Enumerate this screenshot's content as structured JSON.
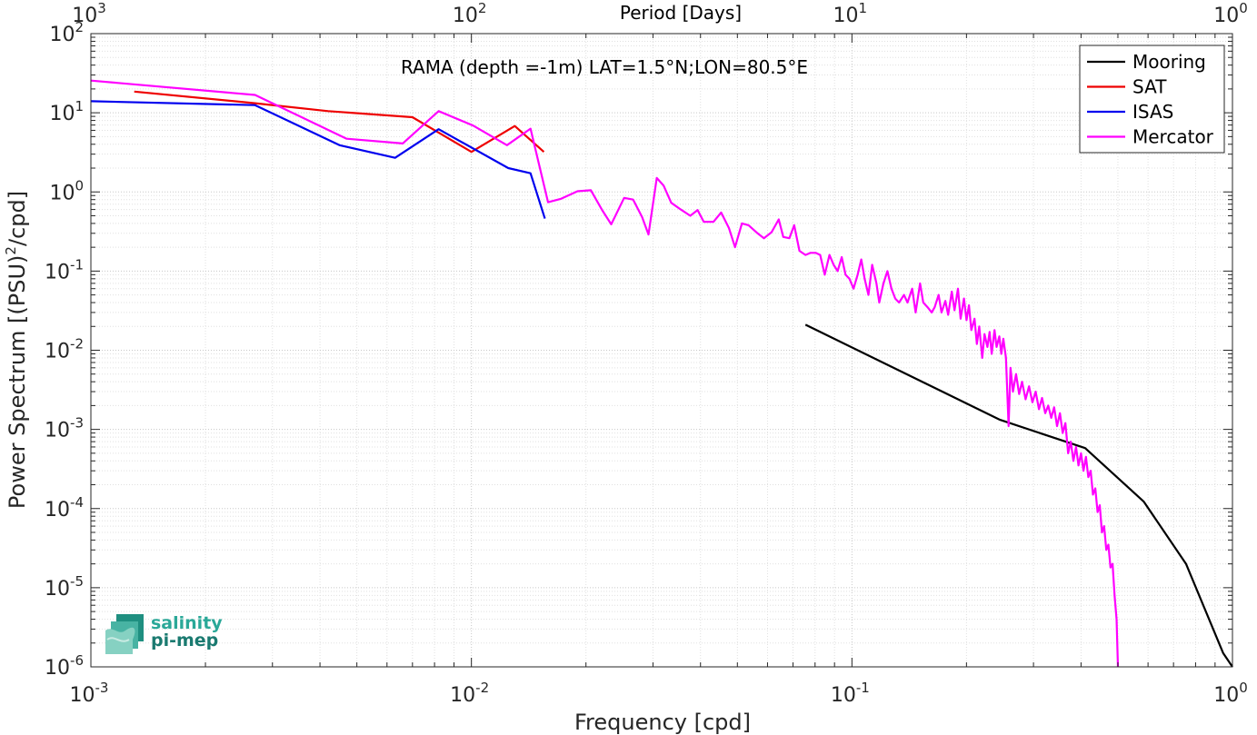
{
  "chart_data": {
    "type": "line",
    "title": "RAMA (depth =-1m) LAT=1.5°N;LON=80.5°E",
    "xlabel": "Frequency [cpd]",
    "ylabel_main": "Power Spectrum [(PSU)",
    "ylabel_sup": "2",
    "ylabel_tail": "/cpd]",
    "top_xlabel": "Period [Days]",
    "xscale": "log",
    "yscale": "log",
    "xlim": [
      0.001,
      1
    ],
    "ylim": [
      1e-06,
      100
    ],
    "grid": true,
    "legend_position": "top-right",
    "x_ticks": [
      {
        "value": 0.001,
        "base": "10",
        "exp": "-3"
      },
      {
        "value": 0.01,
        "base": "10",
        "exp": "-2"
      },
      {
        "value": 0.1,
        "base": "10",
        "exp": "-1"
      },
      {
        "value": 1,
        "base": "10",
        "exp": "0"
      }
    ],
    "top_ticks": [
      {
        "value": 0.001,
        "base": "10",
        "exp": "3"
      },
      {
        "value": 0.01,
        "base": "10",
        "exp": "2"
      },
      {
        "value": 0.1,
        "base": "10",
        "exp": "1"
      },
      {
        "value": 1,
        "base": "10",
        "exp": "0"
      }
    ],
    "y_ticks": [
      {
        "value": 100,
        "base": "10",
        "exp": "2"
      },
      {
        "value": 10,
        "base": "10",
        "exp": "1"
      },
      {
        "value": 1,
        "base": "10",
        "exp": "0"
      },
      {
        "value": 0.1,
        "base": "10",
        "exp": "-1"
      },
      {
        "value": 0.01,
        "base": "10",
        "exp": "-2"
      },
      {
        "value": 0.001,
        "base": "10",
        "exp": "-3"
      },
      {
        "value": 0.0001,
        "base": "10",
        "exp": "-4"
      },
      {
        "value": 1e-05,
        "base": "10",
        "exp": "-5"
      },
      {
        "value": 1e-06,
        "base": "10",
        "exp": "-6"
      }
    ],
    "series": [
      {
        "name": "Mooring",
        "color": "#000000",
        "points": [
          [
            0.0755,
            0.021
          ],
          [
            0.245,
            0.00132
          ],
          [
            0.41,
            0.00058
          ],
          [
            0.585,
            0.000122
          ],
          [
            0.755,
            2e-05
          ],
          [
            0.945,
            1.5e-06
          ],
          [
            1.0,
            1e-06
          ]
        ]
      },
      {
        "name": "SAT",
        "color": "#ee0000",
        "points": [
          [
            0.0013,
            18.5
          ],
          [
            0.0027,
            13.2
          ],
          [
            0.0042,
            10.5
          ],
          [
            0.007,
            8.8
          ],
          [
            0.01,
            3.2
          ],
          [
            0.013,
            6.8
          ],
          [
            0.0155,
            3.2
          ]
        ]
      },
      {
        "name": "ISAS",
        "color": "#0000ee",
        "points": [
          [
            0.001,
            14.0
          ],
          [
            0.0027,
            12.5
          ],
          [
            0.0045,
            3.9
          ],
          [
            0.0063,
            2.7
          ],
          [
            0.0082,
            6.2
          ],
          [
            0.0125,
            2.0
          ],
          [
            0.0143,
            1.72
          ],
          [
            0.0156,
            0.46
          ]
        ]
      },
      {
        "name": "Mercator",
        "color": "#ff00ff",
        "points": [
          [
            0.001,
            25.5
          ],
          [
            0.0027,
            16.8
          ],
          [
            0.0047,
            4.7
          ],
          [
            0.0066,
            4.1
          ],
          [
            0.0082,
            10.5
          ],
          [
            0.0101,
            6.9
          ],
          [
            0.0124,
            3.9
          ],
          [
            0.0143,
            6.3
          ],
          [
            0.0159,
            0.74
          ],
          [
            0.0172,
            0.82
          ],
          [
            0.019,
            1.02
          ],
          [
            0.0206,
            1.05
          ],
          [
            0.0221,
            0.58
          ],
          [
            0.0233,
            0.39
          ],
          [
            0.0252,
            0.84
          ],
          [
            0.0266,
            0.8
          ],
          [
            0.0281,
            0.48
          ],
          [
            0.0292,
            0.29
          ],
          [
            0.0307,
            1.5
          ],
          [
            0.032,
            1.2
          ],
          [
            0.0335,
            0.73
          ],
          [
            0.0355,
            0.6
          ],
          [
            0.0376,
            0.5
          ],
          [
            0.0393,
            0.59
          ],
          [
            0.0408,
            0.42
          ],
          [
            0.0433,
            0.42
          ],
          [
            0.0453,
            0.55
          ],
          [
            0.0475,
            0.35
          ],
          [
            0.0493,
            0.2
          ],
          [
            0.0514,
            0.4
          ],
          [
            0.0535,
            0.38
          ],
          [
            0.0565,
            0.3
          ],
          [
            0.0587,
            0.26
          ],
          [
            0.0615,
            0.31
          ],
          [
            0.0642,
            0.45
          ],
          [
            0.066,
            0.27
          ],
          [
            0.0685,
            0.26
          ],
          [
            0.0705,
            0.38
          ],
          [
            0.0728,
            0.18
          ],
          [
            0.0755,
            0.16
          ],
          [
            0.0778,
            0.17
          ],
          [
            0.0803,
            0.17
          ],
          [
            0.0825,
            0.16
          ],
          [
            0.0848,
            0.09
          ],
          [
            0.0873,
            0.16
          ],
          [
            0.0895,
            0.12
          ],
          [
            0.0917,
            0.1
          ],
          [
            0.094,
            0.15
          ],
          [
            0.0962,
            0.09
          ],
          [
            0.0985,
            0.08
          ],
          [
            0.101,
            0.06
          ],
          [
            0.1035,
            0.09
          ],
          [
            0.1058,
            0.14
          ],
          [
            0.108,
            0.08
          ],
          [
            0.1105,
            0.05
          ],
          [
            0.113,
            0.12
          ],
          [
            0.116,
            0.07
          ],
          [
            0.118,
            0.04
          ],
          [
            0.121,
            0.07
          ],
          [
            0.124,
            0.1
          ],
          [
            0.127,
            0.06
          ],
          [
            0.13,
            0.045
          ],
          [
            0.133,
            0.04
          ],
          [
            0.137,
            0.05
          ],
          [
            0.14,
            0.04
          ],
          [
            0.144,
            0.06
          ],
          [
            0.147,
            0.03
          ],
          [
            0.151,
            0.07
          ],
          [
            0.154,
            0.04
          ],
          [
            0.158,
            0.035
          ],
          [
            0.162,
            0.03
          ],
          [
            0.165,
            0.035
          ],
          [
            0.169,
            0.05
          ],
          [
            0.172,
            0.03
          ],
          [
            0.176,
            0.042
          ],
          [
            0.179,
            0.028
          ],
          [
            0.183,
            0.055
          ],
          [
            0.186,
            0.032
          ],
          [
            0.19,
            0.06
          ],
          [
            0.193,
            0.025
          ],
          [
            0.197,
            0.045
          ],
          [
            0.2,
            0.024
          ],
          [
            0.203,
            0.037
          ],
          [
            0.206,
            0.018
          ],
          [
            0.21,
            0.025
          ],
          [
            0.213,
            0.012
          ],
          [
            0.216,
            0.02
          ],
          [
            0.22,
            0.008
          ],
          [
            0.223,
            0.016
          ],
          [
            0.227,
            0.011
          ],
          [
            0.23,
            0.017
          ],
          [
            0.233,
            0.009
          ],
          [
            0.237,
            0.018
          ],
          [
            0.24,
            0.011
          ],
          [
            0.244,
            0.015
          ],
          [
            0.247,
            0.009
          ],
          [
            0.25,
            0.014
          ],
          [
            0.254,
            0.008
          ],
          [
            0.258,
            0.0011
          ],
          [
            0.261,
            0.006
          ],
          [
            0.265,
            0.003
          ],
          [
            0.27,
            0.005
          ],
          [
            0.275,
            0.0028
          ],
          [
            0.28,
            0.004
          ],
          [
            0.286,
            0.0024
          ],
          [
            0.292,
            0.0035
          ],
          [
            0.298,
            0.0022
          ],
          [
            0.304,
            0.003
          ],
          [
            0.31,
            0.0018
          ],
          [
            0.316,
            0.0025
          ],
          [
            0.322,
            0.0016
          ],
          [
            0.328,
            0.002
          ],
          [
            0.334,
            0.0014
          ],
          [
            0.34,
            0.0019
          ],
          [
            0.346,
            0.0011
          ],
          [
            0.352,
            0.0016
          ],
          [
            0.358,
            0.0009
          ],
          [
            0.364,
            0.0012
          ],
          [
            0.37,
            0.0005
          ],
          [
            0.376,
            0.0007
          ],
          [
            0.382,
            0.0004
          ],
          [
            0.388,
            0.0006
          ],
          [
            0.394,
            0.00035
          ],
          [
            0.4,
            0.0005
          ],
          [
            0.406,
            0.0003
          ],
          [
            0.412,
            0.00045
          ],
          [
            0.418,
            0.00025
          ],
          [
            0.424,
            0.0003
          ],
          [
            0.43,
            0.00015
          ],
          [
            0.436,
            0.00018
          ],
          [
            0.442,
            9e-05
          ],
          [
            0.448,
            0.00011
          ],
          [
            0.454,
            5e-05
          ],
          [
            0.46,
            6e-05
          ],
          [
            0.466,
            3e-05
          ],
          [
            0.472,
            3.5e-05
          ],
          [
            0.478,
            1.8e-05
          ],
          [
            0.484,
            2e-05
          ],
          [
            0.49,
            8e-06
          ],
          [
            0.496,
            4e-06
          ],
          [
            0.5,
            1e-06
          ]
        ]
      }
    ]
  },
  "logo": {
    "line1": "salinity",
    "line2": "pi-mep",
    "color1": "#2aa898",
    "color2": "#1a7a70"
  }
}
